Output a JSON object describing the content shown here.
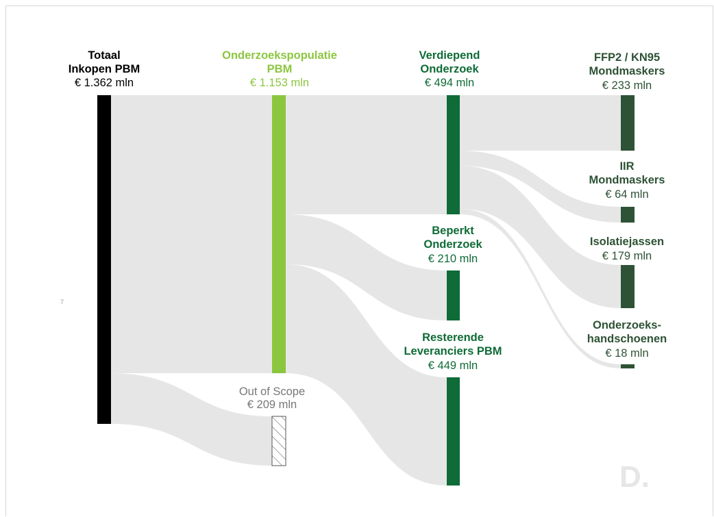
{
  "colors": {
    "flow": "#e6e6e6",
    "black": "#000000",
    "lightgreen": "#8cc63f",
    "darkgreen": "#0f6b37",
    "darkestgreen": "#2e5235",
    "grey": "#777777"
  },
  "nodes": {
    "totaal": {
      "line1": "Totaal",
      "line2": "Inkopen PBM",
      "value": "€ 1.362 mln"
    },
    "onderzoekspopulatie": {
      "line1": "Onderzoekspopulatie",
      "line2": "PBM",
      "value": "€ 1.153 mln"
    },
    "out_of_scope": {
      "line1": "Out of Scope",
      "value": "€ 209 mln"
    },
    "verdiepend": {
      "line1": "Verdiepend",
      "line2": "Onderzoek",
      "value": "€ 494 mln"
    },
    "beperkt": {
      "line1": "Beperkt",
      "line2": "Onderzoek",
      "value": "€ 210 mln"
    },
    "resterende": {
      "line1": "Resterende",
      "line2": "Leveranciers PBM",
      "value": "€ 449 mln"
    },
    "ffp2": {
      "line1": "FFP2 / KN95",
      "line2": "Mondmaskers",
      "value": "€ 233 mln"
    },
    "iir": {
      "line1": "IIR",
      "line2": "Mondmaskers",
      "value": "€ 64 mln"
    },
    "isolatiejassen": {
      "line1": "Isolatiejassen",
      "value": "€ 179  mln"
    },
    "handschoenen": {
      "line1": "Onderzoeks-",
      "line2": "handschoenen",
      "value": "€ 18 mln"
    }
  },
  "page_marker": "7",
  "logo": "D."
}
